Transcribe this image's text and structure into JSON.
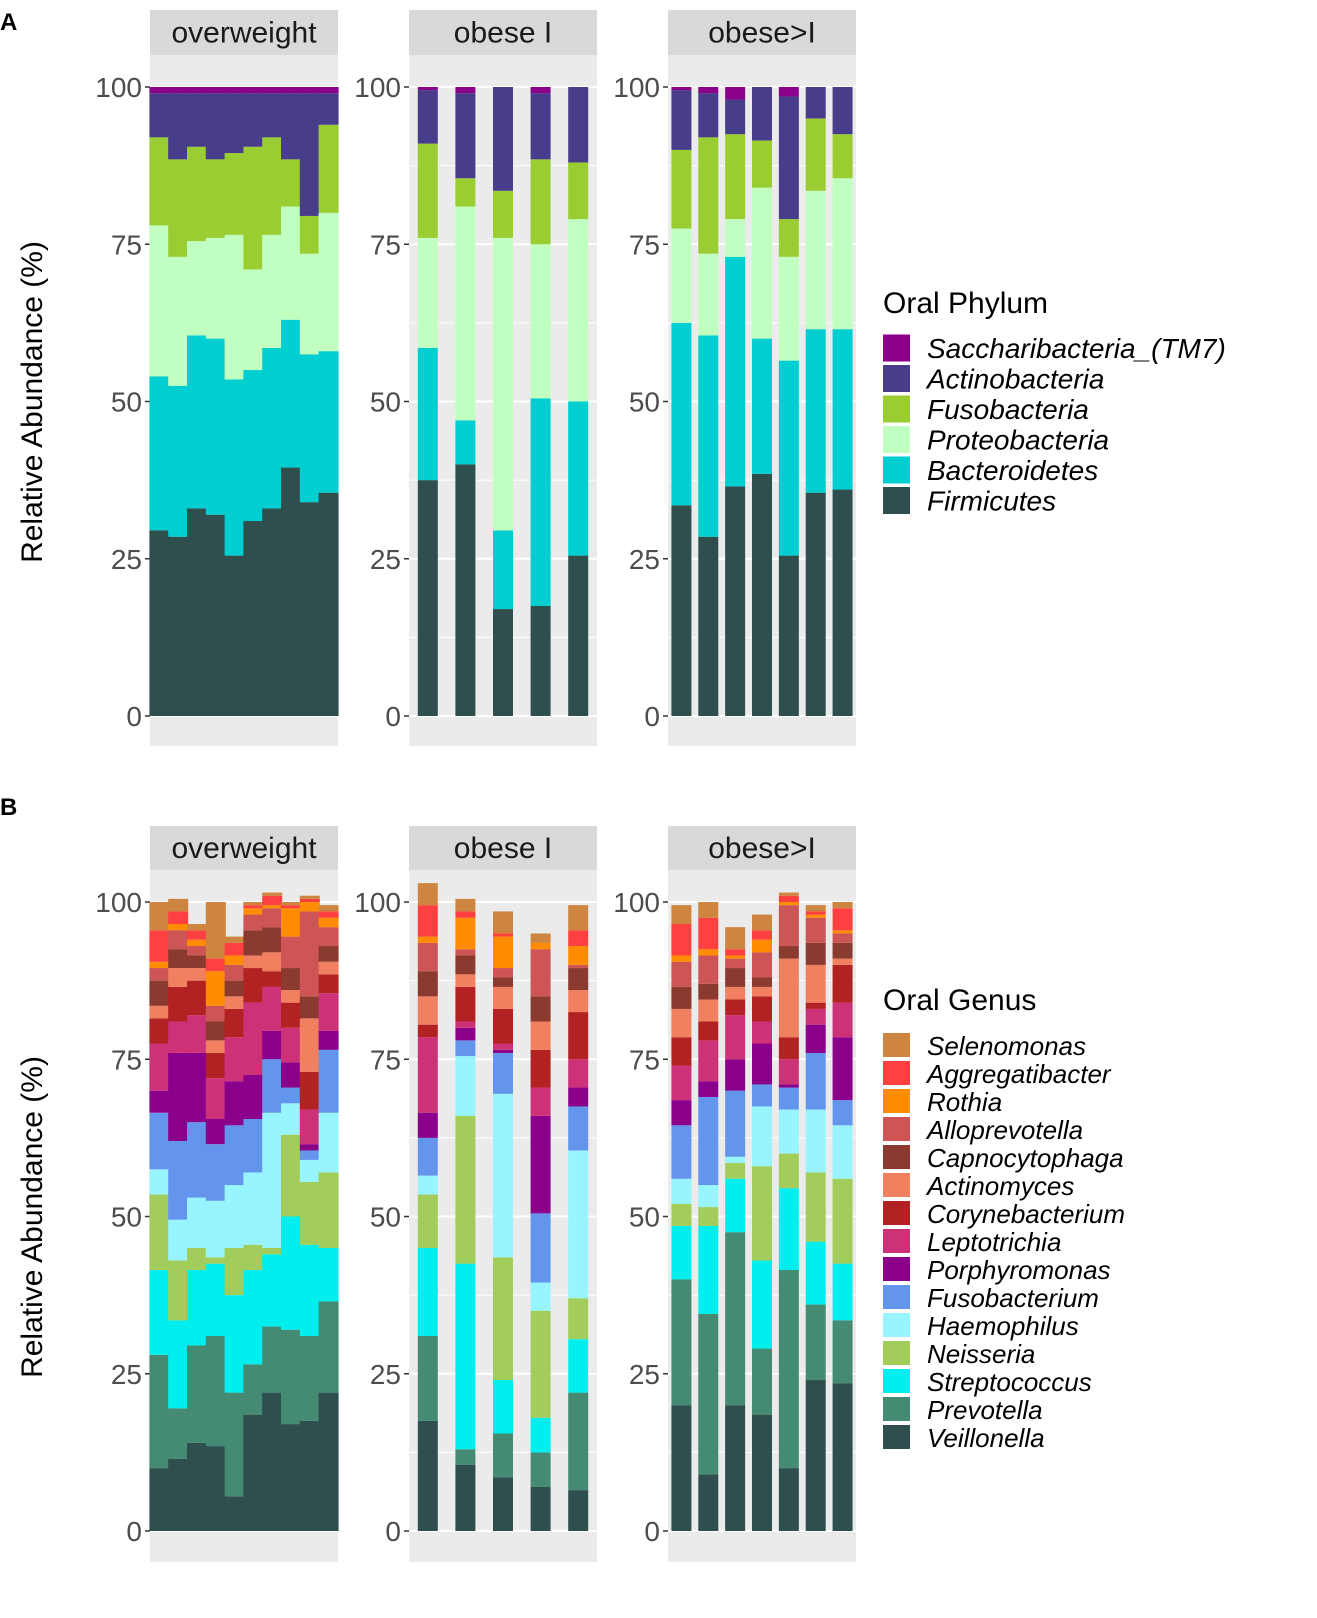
{
  "chart_data": [
    {
      "panel_label": "A",
      "type": "bar",
      "stacked": true,
      "ylabel": "Relative Abundance (%)",
      "ylim": [
        0,
        100
      ],
      "yticks": [
        "0",
        "25",
        "50",
        "75",
        "100"
      ],
      "legend_title": "Oral Phylum",
      "legend": [
        {
          "name": "Saccharibacteria_(TM7)",
          "color": "#8B008B"
        },
        {
          "name": "Actinobacteria",
          "color": "#483D8B"
        },
        {
          "name": "Fusobacteria",
          "color": "#9ACD32"
        },
        {
          "name": "Proteobacteria",
          "color": "#C1FFC1"
        },
        {
          "name": "Bacteroidetes",
          "color": "#00CED1"
        },
        {
          "name": "Firmicutes",
          "color": "#2F4F4F"
        }
      ],
      "stack_order": [
        "Firmicutes",
        "Bacteroidetes",
        "Proteobacteria",
        "Fusobacteria",
        "Actinobacteria",
        "Saccharibacteria_(TM7)"
      ],
      "facets": [
        {
          "title": "overweight",
          "samples": [
            [
              29.5,
              24.5,
              24,
              14,
              7,
              1
            ],
            [
              28.5,
              24,
              20.5,
              15.5,
              10.5,
              1
            ],
            [
              33,
              27.5,
              15,
              15,
              8.5,
              1
            ],
            [
              32,
              28,
              16,
              12.5,
              10.5,
              1
            ],
            [
              25.5,
              28,
              23,
              13,
              9.5,
              1
            ],
            [
              31,
              24,
              16,
              19.5,
              8.5,
              1
            ],
            [
              33,
              25.5,
              18,
              15.5,
              7,
              1
            ],
            [
              39.5,
              23.5,
              18,
              7.5,
              10.5,
              1
            ],
            [
              34,
              23.5,
              16,
              6,
              19.5,
              1
            ],
            [
              35.5,
              22.5,
              22,
              14,
              5,
              1
            ]
          ]
        },
        {
          "title": "obese I",
          "samples": [
            [
              37.5,
              21,
              17.5,
              15,
              8.5,
              0.5
            ],
            [
              40,
              7,
              34,
              4.5,
              13.5,
              1
            ],
            [
              17,
              12.5,
              46.5,
              7.5,
              16.5,
              0
            ],
            [
              17.5,
              33,
              24.5,
              13.5,
              10.5,
              1
            ],
            [
              25.5,
              24.5,
              29,
              9,
              12,
              0
            ]
          ]
        },
        {
          "title": "obese>I",
          "samples": [
            [
              33.5,
              29,
              15,
              12.5,
              9.5,
              0.5
            ],
            [
              28.5,
              32,
              13,
              18.5,
              7,
              1
            ],
            [
              36.5,
              36.5,
              6,
              13.5,
              5.5,
              2
            ],
            [
              38.5,
              21.5,
              24,
              7.5,
              8.5,
              0
            ],
            [
              25.5,
              31,
              16.5,
              6,
              19.5,
              1.5
            ],
            [
              35.5,
              26,
              22,
              11.5,
              5,
              0
            ],
            [
              36,
              25.5,
              24,
              7,
              7.5,
              0
            ]
          ]
        }
      ]
    },
    {
      "panel_label": "B",
      "type": "bar",
      "stacked": true,
      "ylabel": "Relative Abundance (%)",
      "ylim": [
        0,
        100
      ],
      "yticks": [
        "0",
        "25",
        "50",
        "75",
        "100"
      ],
      "legend_title": "Oral Genus",
      "legend": [
        {
          "name": "Selenomonas",
          "color": "#CD853F"
        },
        {
          "name": "Aggregatibacter",
          "color": "#FF4040"
        },
        {
          "name": "Rothia",
          "color": "#FF8C00"
        },
        {
          "name": "Alloprevotella",
          "color": "#CD5555"
        },
        {
          "name": "Capnocytophaga",
          "color": "#8B3A2F"
        },
        {
          "name": "Actinomyces",
          "color": "#F08060"
        },
        {
          "name": "Corynebacterium",
          "color": "#B22222"
        },
        {
          "name": "Leptotrichia",
          "color": "#CD3278"
        },
        {
          "name": "Porphyromonas",
          "color": "#8B008B"
        },
        {
          "name": "Fusobacterium",
          "color": "#6495ED"
        },
        {
          "name": "Haemophilus",
          "color": "#98F5FF"
        },
        {
          "name": "Neisseria",
          "color": "#A2CD5A"
        },
        {
          "name": "Streptococcus",
          "color": "#00EEEE"
        },
        {
          "name": "Prevotella",
          "color": "#458B74"
        },
        {
          "name": "Veillonella",
          "color": "#2F4F4F"
        }
      ],
      "stack_order": [
        "Veillonella",
        "Prevotella",
        "Streptococcus",
        "Neisseria",
        "Haemophilus",
        "Fusobacterium",
        "Porphyromonas",
        "Leptotrichia",
        "Corynebacterium",
        "Actinomyces",
        "Capnocytophaga",
        "Alloprevotella",
        "Rothia",
        "Aggregatibacter",
        "Selenomonas"
      ],
      "facets": [
        {
          "title": "overweight",
          "samples": [
            [
              10,
              18,
              13.5,
              12,
              4,
              9,
              3.5,
              7.5,
              4,
              2,
              4,
              2,
              1,
              5,
              4.5
            ],
            [
              11.5,
              8,
              14,
              9.5,
              6.5,
              12.5,
              14,
              5,
              5.5,
              3,
              3,
              3,
              1,
              2,
              2
            ],
            [
              14,
              15.5,
              12,
              3.5,
              8,
              12,
              11,
              6,
              5.5,
              2,
              2,
              1.5,
              1,
              1.5,
              1
            ],
            [
              13.5,
              17.5,
              11.5,
              1,
              9,
              9,
              4,
              6.5,
              4,
              2,
              3,
              2.5,
              5.5,
              2,
              9
            ],
            [
              5.5,
              16.5,
              15.5,
              7.5,
              10,
              9.5,
              7,
              7,
              4.5,
              2,
              2.5,
              2.5,
              1.5,
              2,
              1
            ],
            [
              18.5,
              8,
              15,
              4,
              11.5,
              8.5,
              7,
              11.5,
              5.5,
              2,
              4,
              2.5,
              1,
              0.5,
              0.5
            ],
            [
              22,
              10.5,
              11.5,
              1,
              21.5,
              8.5,
              4.5,
              7,
              2.5,
              3,
              4,
              3,
              0.5,
              1.5,
              0.5
            ],
            [
              17,
              15,
              18,
              13,
              5,
              2.5,
              4,
              5.5,
              4,
              2,
              3.5,
              5,
              4.5,
              0.5,
              0.5
            ],
            [
              17.5,
              13.5,
              14.5,
              10,
              3.5,
              1.5,
              1,
              5.5,
              6,
              8.5,
              3.5,
              13.5,
              1.5,
              0.5,
              0.5
            ],
            [
              22,
              14.5,
              8.5,
              12,
              9.5,
              10,
              3,
              6,
              3,
              2,
              2.5,
              3,
              1.5,
              1,
              1
            ]
          ]
        },
        {
          "title": "obese I",
          "samples": [
            [
              17.5,
              13.5,
              14,
              8.5,
              3,
              6,
              4,
              12,
              2,
              4.5,
              4,
              4.5,
              1,
              5,
              3.5
            ],
            [
              10.5,
              2.5,
              29.5,
              23.5,
              9.5,
              2.5,
              2,
              1,
              5.5,
              2,
              3,
              1,
              5,
              1,
              2
            ],
            [
              8.5,
              7,
              8.5,
              19.5,
              26,
              6.5,
              0.5,
              1,
              5.5,
              3.5,
              1.5,
              1.5,
              5,
              0.5,
              3.5
            ],
            [
              7,
              5.5,
              5.5,
              17,
              4.5,
              11,
              15.5,
              4.5,
              6,
              4.5,
              4,
              7.5,
              1,
              0,
              1.5
            ],
            [
              6.5,
              15.5,
              8.5,
              6.5,
              23.5,
              7,
              3,
              4.5,
              7.5,
              3.5,
              3.5,
              0.5,
              3,
              2.5,
              4
            ]
          ]
        },
        {
          "title": "obese>I",
          "samples": [
            [
              20,
              20,
              8.5,
              3.5,
              4,
              8.5,
              4,
              5.5,
              4.5,
              4.5,
              3.5,
              4,
              1,
              5,
              3
            ],
            [
              9,
              25.5,
              14,
              3,
              3.5,
              14,
              2.5,
              6.5,
              3,
              3.5,
              2.5,
              4.5,
              1,
              5,
              2.5
            ],
            [
              20,
              27.5,
              8.5,
              2.5,
              1,
              10.5,
              5,
              7,
              2.5,
              2,
              3,
              1.5,
              0.5,
              1,
              3.5
            ],
            [
              18.5,
              10.5,
              14,
              15,
              9.5,
              3.5,
              6.5,
              3.5,
              4,
              1.5,
              1.5,
              4,
              2,
              1.5,
              2.5
            ],
            [
              10,
              31.5,
              13,
              5.5,
              7,
              3.5,
              0.5,
              4,
              3.5,
              12.5,
              2,
              6.5,
              0.5,
              1,
              0.5
            ],
            [
              24,
              12,
              10,
              11,
              10,
              9,
              4.5,
              2.5,
              1,
              6,
              3.5,
              4,
              0.5,
              0.5,
              1
            ],
            [
              23.5,
              10,
              9,
              13.5,
              8.5,
              4,
              10,
              5.5,
              6,
              1,
              2.5,
              1.5,
              0.5,
              3.5,
              1
            ]
          ]
        }
      ]
    }
  ]
}
